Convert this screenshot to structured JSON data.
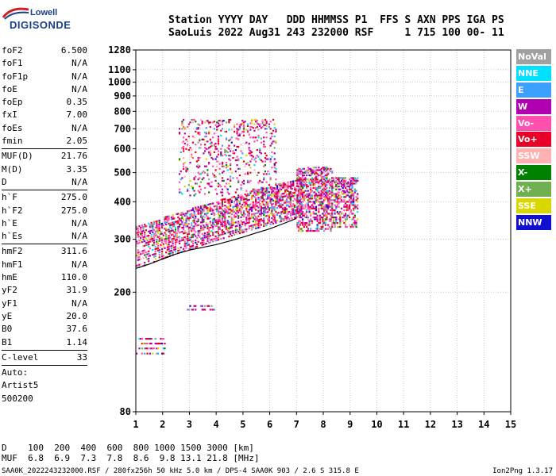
{
  "logo": {
    "top": "Lowell",
    "bottom": "DIGISONDE"
  },
  "header": {
    "line1": "Station YYYY DAY   DDD HHMMSS P1  FFS S AXN PPS IGA PS",
    "line2": "SaoLuis 2022 Aug31 243 232000 RSF     1 715 100 00- 11"
  },
  "params_groups": [
    [
      [
        "foF2",
        "6.500"
      ],
      [
        "foF1",
        "N/A"
      ],
      [
        "foF1p",
        "N/A"
      ],
      [
        "foE",
        "N/A"
      ],
      [
        "foEp",
        "0.35"
      ],
      [
        "fxI",
        "7.00"
      ],
      [
        "foEs",
        "N/A"
      ],
      [
        "fmin",
        "2.05"
      ]
    ],
    [
      [
        "MUF(D)",
        "21.76"
      ],
      [
        "M(D)",
        "3.35"
      ],
      [
        "D",
        "N/A"
      ]
    ],
    [
      [
        "h`F",
        "275.0"
      ],
      [
        "h`F2",
        "275.0"
      ],
      [
        "h`E",
        "N/A"
      ],
      [
        "h`Es",
        "N/A"
      ]
    ],
    [
      [
        "hmF2",
        "311.6"
      ],
      [
        "hmF1",
        "N/A"
      ],
      [
        "hmE",
        "110.0"
      ],
      [
        "yF2",
        "31.9"
      ],
      [
        "yF1",
        "N/A"
      ],
      [
        "yE",
        "20.0"
      ],
      [
        "B0",
        "37.6"
      ],
      [
        "B1",
        "1.14"
      ]
    ],
    [
      [
        "C-level",
        "33"
      ]
    ]
  ],
  "auto": {
    "label": "Auto:",
    "program": "Artist5",
    "version": "500200"
  },
  "legend": [
    {
      "label": "NoVal",
      "color": "#a0a0a0"
    },
    {
      "label": "NNE",
      "color": "#00e0ff"
    },
    {
      "label": "E",
      "color": "#3ca0ff"
    },
    {
      "label": "W",
      "color": "#b000b0"
    },
    {
      "label": "Vo-",
      "color": "#ff50b0"
    },
    {
      "label": "Vo+",
      "color": "#e80028"
    },
    {
      "label": "SSW",
      "color": "#ffb0b0"
    },
    {
      "label": "X-",
      "color": "#008000"
    },
    {
      "label": "X+",
      "color": "#70b050"
    },
    {
      "label": "SSE",
      "color": "#d8d800"
    },
    {
      "label": "NNW",
      "color": "#1010d0"
    }
  ],
  "chart_data": {
    "type": "scatter",
    "xlabel": "",
    "ylabel": "",
    "xlim": [
      1,
      15
    ],
    "ylim": [
      80,
      1280
    ],
    "y_scale": "log",
    "x_ticks": [
      1,
      2,
      3,
      4,
      5,
      6,
      7,
      8,
      9,
      10,
      11,
      12,
      13,
      14,
      15
    ],
    "y_ticks": [
      80,
      200,
      300,
      400,
      500,
      600,
      700,
      800,
      900,
      1000,
      1100,
      1280
    ],
    "grid": true,
    "trace": {
      "name": "",
      "x": [
        1.0,
        1.5,
        2.0,
        2.5,
        3.0,
        3.5,
        4.0,
        4.5,
        5.0,
        5.5,
        6.0,
        6.5,
        7.0
      ],
      "y": [
        240,
        248,
        258,
        268,
        276,
        282,
        288,
        296,
        305,
        315,
        325,
        338,
        352
      ]
    },
    "echo_regions": [
      {
        "f": [
          1.0,
          7.2
        ],
        "h_base": [
          240,
          360
        ],
        "h_top": [
          330,
          480
        ],
        "density": 0.55
      },
      {
        "f": [
          7.0,
          8.3
        ],
        "h": [
          320,
          520
        ],
        "density": 0.5
      },
      {
        "f": [
          8.3,
          9.3
        ],
        "h": [
          330,
          480
        ],
        "density": 0.45
      },
      {
        "f": [
          2.6,
          6.2
        ],
        "h": [
          420,
          750
        ],
        "density": 0.12
      },
      {
        "f": [
          1.0,
          2.1
        ],
        "h": [
          125,
          140
        ],
        "density": 0.6
      },
      {
        "f": [
          2.9,
          4.0
        ],
        "h": [
          175,
          180
        ],
        "density": 0.5
      }
    ]
  },
  "bottom": {
    "d_label": "D",
    "d_values": "100  200  400  600  800 1000 1500 3000 [km]",
    "muf_label": "MUF",
    "muf_values": "6.8  6.9  7.3  7.8  8.6  9.8 13.1 21.8 [MHz]"
  },
  "footer": {
    "left": "SAA0K_2022243232000.RSF / 280fx256h 50 kHz 5.0 km / DPS-4 SAA0K 903 / 2.6 S 315.8 E",
    "right": "Ion2Png 1.3.17"
  }
}
